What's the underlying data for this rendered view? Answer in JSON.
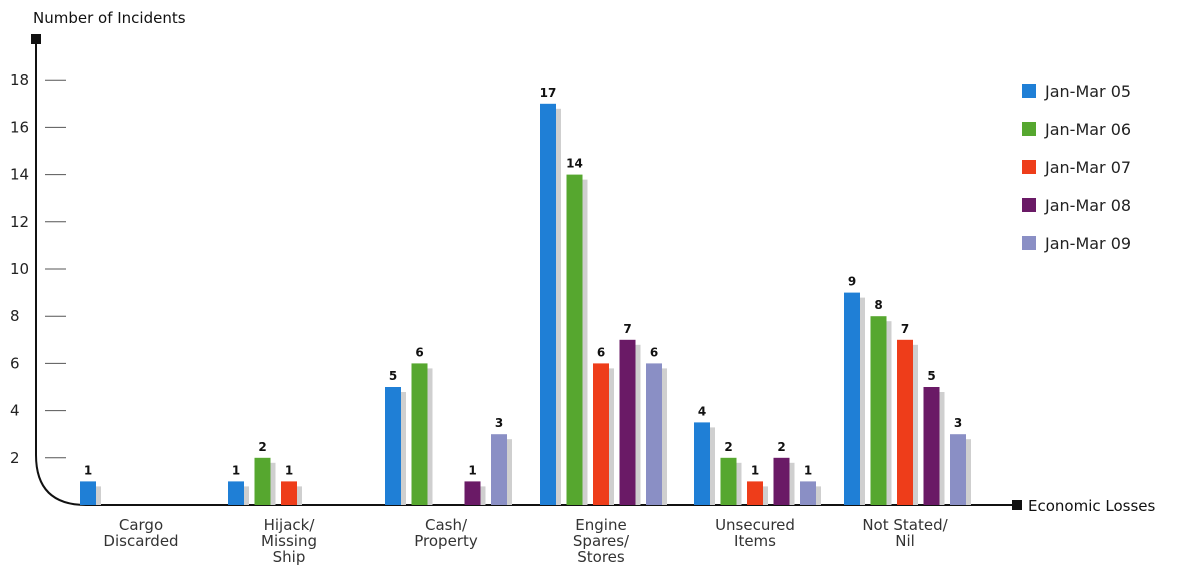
{
  "chart_data": {
    "type": "bar",
    "ylabel": "Number of Incidents",
    "xlabel": "Economic Losses",
    "categories": [
      [
        "Cargo",
        "Discarded"
      ],
      [
        "Hijack/",
        "Missing",
        "Ship"
      ],
      [
        "Cash/",
        "Property"
      ],
      [
        "Engine",
        "Spares/",
        "Stores"
      ],
      [
        "Unsecured",
        "Items"
      ],
      [
        "Not Stated/",
        "Nil"
      ]
    ],
    "yticks": [
      "2",
      "4",
      "6",
      "8",
      "10",
      "12",
      "14",
      "16",
      "18"
    ],
    "ylim": [
      0,
      19
    ],
    "series": [
      {
        "name": "Jan-Mar 05",
        "color": "#1f7fd6",
        "values": [
          1,
          1,
          5,
          17,
          3.5,
          9
        ],
        "labels": [
          "1",
          "1",
          "5",
          "17",
          "4",
          "9"
        ]
      },
      {
        "name": "Jan-Mar 06",
        "color": "#56a72f",
        "values": [
          0,
          2,
          6,
          14,
          2,
          8
        ],
        "labels": [
          "",
          "2",
          "6",
          "14",
          "2",
          "8"
        ]
      },
      {
        "name": "Jan-Mar 07",
        "color": "#ee3d1a",
        "values": [
          0,
          1,
          0,
          6,
          1,
          7
        ],
        "labels": [
          "",
          "1",
          "",
          "6",
          "1",
          "7"
        ]
      },
      {
        "name": "Jan-Mar 08",
        "color": "#6a1a66",
        "values": [
          0,
          0,
          1,
          7,
          2,
          5
        ],
        "labels": [
          "",
          "",
          "1",
          "7",
          "2",
          "5"
        ]
      },
      {
        "name": "Jan-Mar 09",
        "color": "#8a8fc5",
        "values": [
          0,
          0,
          3,
          6,
          1,
          3
        ],
        "labels": [
          "",
          "",
          "3",
          "6",
          "1",
          "3"
        ]
      }
    ],
    "legend_position": "top-right",
    "grid": false
  }
}
